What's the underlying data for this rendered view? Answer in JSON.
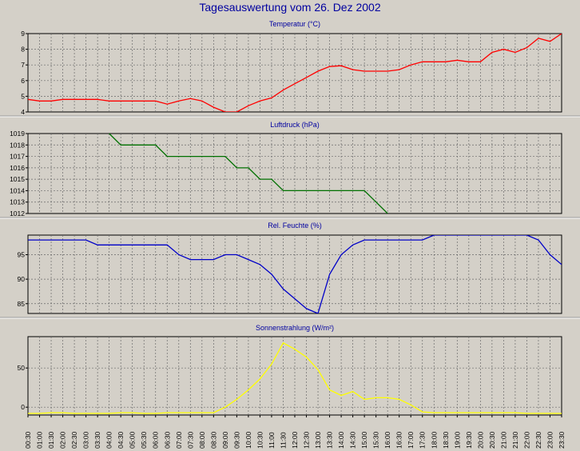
{
  "page": {
    "title": "Tagesauswertung vom 26. Dez 2002"
  },
  "chart_data": [
    {
      "type": "line",
      "title": "Temperatur (°C)",
      "ylim": [
        4,
        9
      ],
      "yticks": [
        4,
        5,
        6,
        7,
        8,
        9
      ],
      "color": "#ff0000",
      "grid": true,
      "x_index_range": [
        0,
        46
      ],
      "x": [
        0,
        1,
        2,
        3,
        4,
        5,
        6,
        7,
        8,
        9,
        10,
        11,
        12,
        13,
        14,
        15,
        16,
        17,
        18,
        19,
        20,
        21,
        22,
        23,
        24,
        25,
        26,
        27,
        28,
        29,
        30,
        31,
        32,
        33,
        34,
        35,
        36,
        37,
        38,
        39,
        40,
        41,
        42,
        43,
        44,
        45,
        46
      ],
      "values": [
        4.8,
        4.7,
        4.7,
        4.8,
        4.8,
        4.8,
        4.8,
        4.7,
        4.7,
        4.7,
        4.7,
        4.7,
        4.5,
        4.7,
        4.85,
        4.7,
        4.3,
        4.0,
        4.0,
        4.4,
        4.7,
        4.9,
        5.4,
        5.8,
        6.2,
        6.6,
        6.9,
        6.95,
        6.7,
        6.6,
        6.6,
        6.6,
        6.7,
        7.0,
        7.2,
        7.2,
        7.2,
        7.3,
        7.2,
        7.2,
        7.8,
        8.0,
        7.8,
        8.1,
        8.7,
        8.5,
        9.0
      ]
    },
    {
      "type": "line",
      "title": "Luftdruck (hPa)",
      "ylim": [
        1012,
        1019
      ],
      "yticks": [
        1012,
        1013,
        1014,
        1015,
        1016,
        1017,
        1018,
        1019
      ],
      "color": "#007000",
      "grid": true,
      "x_index_range": [
        0,
        46
      ],
      "x": [
        7,
        8,
        11,
        12,
        17,
        18,
        19,
        20,
        21,
        22,
        23,
        29,
        30,
        31
      ],
      "values": [
        1019,
        1018,
        1018,
        1017,
        1017,
        1016,
        1016,
        1015,
        1015,
        1014,
        1014,
        1014,
        1013,
        1012
      ]
    },
    {
      "type": "line",
      "title": "Rel. Feuchte (%)",
      "ylim": [
        83,
        99
      ],
      "yticks": [
        85,
        90,
        95
      ],
      "color": "#0000c8",
      "grid": true,
      "x_index_range": [
        0,
        46
      ],
      "x": [
        0,
        1,
        2,
        3,
        4,
        5,
        6,
        7,
        8,
        9,
        10,
        11,
        12,
        13,
        14,
        15,
        16,
        17,
        18,
        19,
        20,
        21,
        22,
        23,
        24,
        25,
        26,
        27,
        28,
        29,
        30,
        31,
        32,
        33,
        34,
        35,
        36,
        43,
        44,
        45,
        46
      ],
      "values": [
        98,
        98,
        98,
        98,
        98,
        98,
        97,
        97,
        97,
        97,
        97,
        97,
        97,
        95,
        94,
        94,
        94,
        95,
        95,
        94,
        93,
        91,
        88,
        86,
        84,
        83,
        91,
        95,
        97,
        98,
        98,
        98,
        98,
        98,
        98,
        99,
        99,
        99,
        98,
        95,
        93
      ]
    },
    {
      "type": "line",
      "title": "Sonnenstrahlung (W/m²)",
      "ylim": [
        -10,
        90
      ],
      "yticks": [
        0,
        50
      ],
      "color": "#ffff00",
      "grid": true,
      "x_index_range": [
        0,
        46
      ],
      "x": [
        0,
        1,
        2,
        3,
        4,
        5,
        6,
        7,
        8,
        9,
        10,
        11,
        12,
        13,
        14,
        15,
        16,
        17,
        18,
        19,
        20,
        21,
        22,
        23,
        24,
        25,
        26,
        27,
        28,
        29,
        30,
        31,
        32,
        33,
        34,
        35,
        36,
        37,
        38,
        39,
        40,
        41,
        42,
        43,
        44,
        45,
        46
      ],
      "values": [
        -8,
        -8,
        -7,
        -7,
        -8,
        -8,
        -8,
        -8,
        -7,
        -7,
        -8,
        -8,
        -7,
        -7,
        -7,
        -7,
        -7,
        0,
        10,
        22,
        36,
        55,
        82,
        74,
        64,
        48,
        22,
        15,
        20,
        10,
        12,
        12,
        10,
        3,
        -6,
        -7,
        -7,
        -7,
        -7,
        -7,
        -7,
        -7,
        -7,
        -8,
        -8,
        -8,
        -8
      ]
    }
  ],
  "x_axis": {
    "labels": [
      "00:30",
      "01:00",
      "01:30",
      "02:00",
      "02:30",
      "03:00",
      "03:30",
      "04:00",
      "04:30",
      "05:00",
      "05:30",
      "06:00",
      "06:30",
      "07:00",
      "07:30",
      "08:00",
      "08:30",
      "09:00",
      "09:30",
      "10:00",
      "10:30",
      "11:00",
      "11:30",
      "12:00",
      "12:30",
      "13:00",
      "13:30",
      "14:00",
      "14:30",
      "15:00",
      "15:30",
      "16:00",
      "16:30",
      "17:00",
      "17:30",
      "18:00",
      "18:30",
      "19:00",
      "19:30",
      "20:00",
      "20:30",
      "21:00",
      "21:30",
      "22:00",
      "22:30",
      "23:00",
      "23:30"
    ]
  }
}
